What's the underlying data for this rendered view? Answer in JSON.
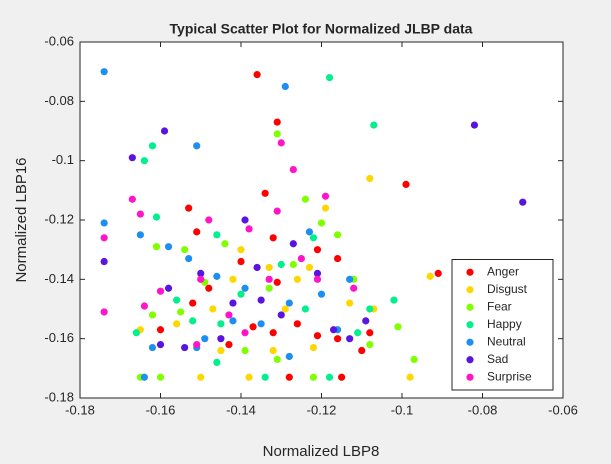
{
  "chart_data": {
    "type": "scatter",
    "title": "Typical Scatter Plot for Normalized JLBP data",
    "x_label": "Normalized LBP8",
    "y_label": "Normalized LBP16",
    "xlim": [
      -0.18,
      -0.06
    ],
    "xticks": [
      -0.18,
      -0.16,
      -0.14,
      -0.12,
      -0.1,
      -0.08,
      -0.06
    ],
    "ylim": [
      -0.18,
      -0.06
    ],
    "yticks": [
      -0.18,
      -0.16,
      -0.14,
      -0.12,
      -0.1,
      -0.08,
      -0.06
    ],
    "grid": false,
    "legend": "lower right",
    "series": [
      {
        "name": "Anger",
        "color": "#ff0000",
        "x": [
          -0.136,
          -0.131,
          -0.099,
          -0.091,
          -0.134,
          -0.153,
          -0.151,
          -0.148,
          -0.14,
          -0.132,
          -0.121,
          -0.116,
          -0.16,
          -0.137,
          -0.126,
          -0.132,
          -0.121,
          -0.116,
          -0.11,
          -0.128,
          -0.115,
          -0.143,
          -0.152,
          -0.131,
          -0.108
        ],
        "values": [
          -0.071,
          -0.087,
          -0.108,
          -0.138,
          -0.111,
          -0.116,
          -0.124,
          -0.143,
          -0.134,
          -0.126,
          -0.13,
          -0.133,
          -0.157,
          -0.156,
          -0.155,
          -0.158,
          -0.159,
          -0.16,
          -0.164,
          -0.173,
          -0.173,
          -0.162,
          -0.148,
          -0.141,
          -0.158
        ]
      },
      {
        "name": "Disgust",
        "color": "#ffd700",
        "x": [
          -0.108,
          -0.093,
          -0.098,
          -0.119,
          -0.14,
          -0.133,
          -0.126,
          -0.147,
          -0.156,
          -0.165,
          -0.145,
          -0.138,
          -0.132,
          -0.122,
          -0.113,
          -0.107,
          -0.123,
          -0.15,
          -0.142,
          -0.129
        ],
        "values": [
          -0.106,
          -0.139,
          -0.173,
          -0.116,
          -0.13,
          -0.136,
          -0.14,
          -0.15,
          -0.155,
          -0.157,
          -0.164,
          -0.173,
          -0.164,
          -0.163,
          -0.148,
          -0.15,
          -0.136,
          -0.173,
          -0.14,
          -0.15
        ]
      },
      {
        "name": "Fear",
        "color": "#80ff00",
        "x": [
          -0.131,
          -0.124,
          -0.161,
          -0.154,
          -0.149,
          -0.144,
          -0.12,
          -0.116,
          -0.127,
          -0.133,
          -0.162,
          -0.155,
          -0.165,
          -0.16,
          -0.122,
          -0.101,
          -0.097,
          -0.112,
          -0.131,
          -0.139,
          -0.108
        ],
        "values": [
          -0.091,
          -0.113,
          -0.129,
          -0.13,
          -0.141,
          -0.128,
          -0.121,
          -0.125,
          -0.135,
          -0.143,
          -0.152,
          -0.151,
          -0.173,
          -0.173,
          -0.173,
          -0.156,
          -0.167,
          -0.14,
          -0.167,
          -0.164,
          -0.162
        ]
      },
      {
        "name": "Happy",
        "color": "#00f08c",
        "x": [
          -0.118,
          -0.107,
          -0.162,
          -0.164,
          -0.161,
          -0.146,
          -0.122,
          -0.13,
          -0.108,
          -0.102,
          -0.145,
          -0.152,
          -0.156,
          -0.134,
          -0.118,
          -0.146,
          -0.166,
          -0.124,
          -0.111,
          -0.14
        ],
        "values": [
          -0.072,
          -0.088,
          -0.095,
          -0.1,
          -0.119,
          -0.125,
          -0.126,
          -0.135,
          -0.15,
          -0.147,
          -0.155,
          -0.154,
          -0.147,
          -0.173,
          -0.173,
          -0.168,
          -0.158,
          -0.15,
          -0.158,
          -0.145
        ]
      },
      {
        "name": "Neutral",
        "color": "#1e8ff0",
        "x": [
          -0.174,
          -0.129,
          -0.151,
          -0.174,
          -0.165,
          -0.123,
          -0.158,
          -0.153,
          -0.146,
          -0.139,
          -0.128,
          -0.12,
          -0.116,
          -0.162,
          -0.149,
          -0.135,
          -0.128,
          -0.151,
          -0.164,
          -0.142,
          -0.113
        ],
        "values": [
          -0.07,
          -0.075,
          -0.095,
          -0.121,
          -0.125,
          -0.124,
          -0.129,
          -0.133,
          -0.139,
          -0.143,
          -0.148,
          -0.145,
          -0.157,
          -0.163,
          -0.16,
          -0.155,
          -0.166,
          -0.163,
          -0.173,
          -0.154,
          -0.14
        ]
      },
      {
        "name": "Sad",
        "color": "#5a14e0",
        "x": [
          -0.082,
          -0.07,
          -0.159,
          -0.167,
          -0.174,
          -0.158,
          -0.15,
          -0.142,
          -0.136,
          -0.127,
          -0.121,
          -0.117,
          -0.113,
          -0.145,
          -0.135,
          -0.16,
          -0.154,
          -0.13,
          -0.109,
          -0.139
        ],
        "values": [
          -0.088,
          -0.114,
          -0.09,
          -0.099,
          -0.134,
          -0.143,
          -0.138,
          -0.148,
          -0.136,
          -0.128,
          -0.138,
          -0.157,
          -0.16,
          -0.16,
          -0.147,
          -0.162,
          -0.163,
          -0.152,
          -0.154,
          -0.12
        ]
      },
      {
        "name": "Surprise",
        "color": "#ff14c8",
        "x": [
          -0.167,
          -0.165,
          -0.174,
          -0.174,
          -0.13,
          -0.127,
          -0.119,
          -0.131,
          -0.148,
          -0.138,
          -0.125,
          -0.133,
          -0.143,
          -0.15,
          -0.16,
          -0.164,
          -0.151,
          -0.139,
          -0.121,
          -0.112
        ],
        "values": [
          -0.113,
          -0.118,
          -0.126,
          -0.151,
          -0.094,
          -0.103,
          -0.112,
          -0.117,
          -0.12,
          -0.123,
          -0.133,
          -0.14,
          -0.152,
          -0.14,
          -0.144,
          -0.149,
          -0.162,
          -0.158,
          -0.14,
          -0.143
        ]
      }
    ]
  }
}
